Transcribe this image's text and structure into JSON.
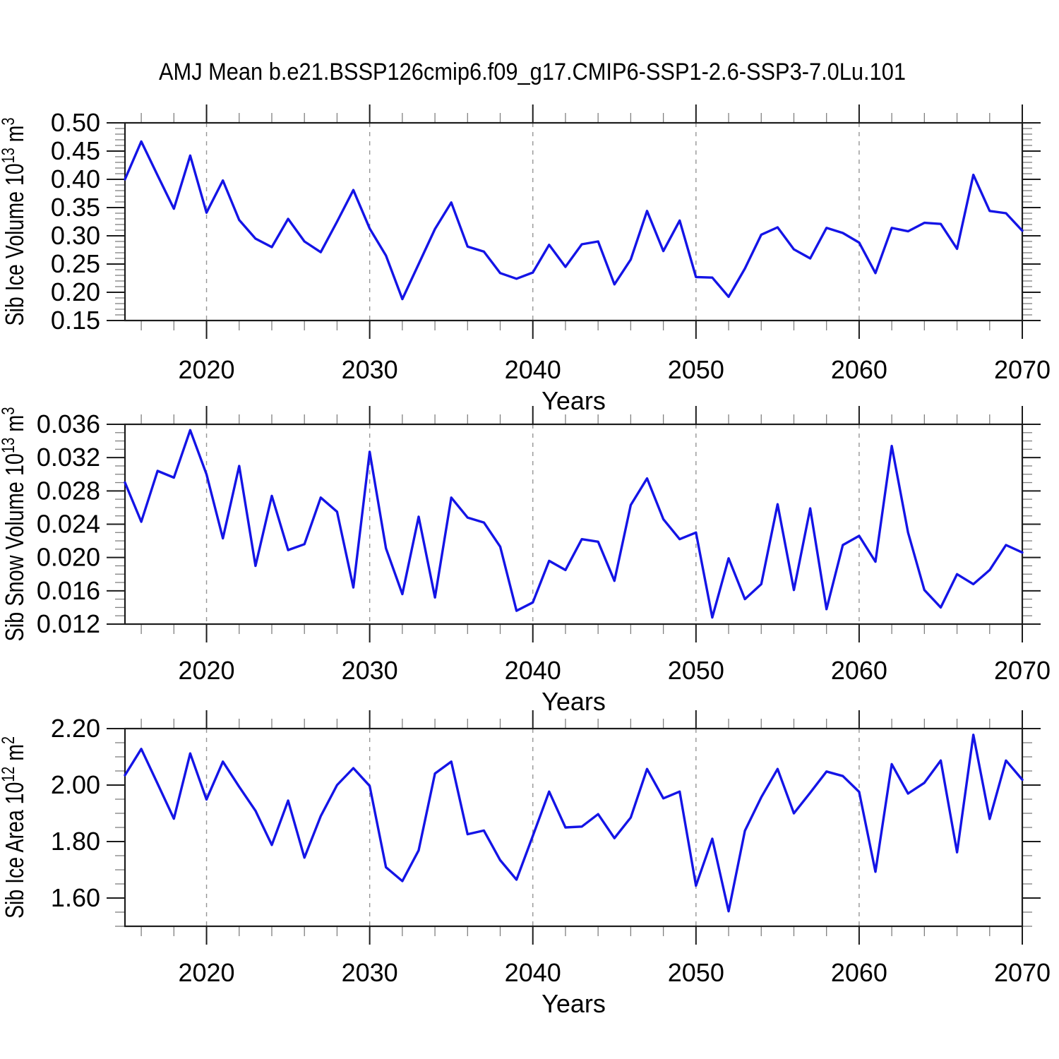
{
  "title": {
    "text": "AMJ Mean b.e21.BSSP126cmip6.f09_g17.CMIP6-SSP1-2.6-SSP3-7.0Lu.101"
  },
  "colors": {
    "line": "#1414e6",
    "axis": "#1c1c1c",
    "minor_tick": "#808080",
    "gridline": "#959595",
    "background": "#ffffff",
    "text": "#000000"
  },
  "x_axis": {
    "label": "Years",
    "range": [
      2015,
      2070
    ],
    "major_ticks": [
      2020,
      2030,
      2040,
      2050,
      2060,
      2070
    ],
    "tick_labels": [
      "2020",
      "2030",
      "2040",
      "2050",
      "2060",
      "2070"
    ],
    "minor_step_years": 2,
    "dashed_gridlines_at": [
      2020,
      2030,
      2040,
      2050,
      2060
    ]
  },
  "chart_data": [
    {
      "type": "line",
      "name": "sib-ice-volume",
      "ylabel": "Sib Ice Volume 10^13 m^3",
      "ylabel_parts": [
        {
          "t": "Sib Ice Volume 10"
        },
        {
          "t": "13",
          "sup": true
        },
        {
          "t": " m"
        },
        {
          "t": "3",
          "sup": true
        }
      ],
      "xlabel": "Years",
      "ylim": [
        0.15,
        0.5
      ],
      "y_major_step": 0.05,
      "y_minor_step": 0.01,
      "y_decimals": 2,
      "y_tick_labels": [
        "0.15",
        "0.20",
        "0.25",
        "0.30",
        "0.35",
        "0.40",
        "0.45",
        "0.50"
      ],
      "grid": "vertical-dashed-decades",
      "legend": "none",
      "x_start": 2015,
      "x_step": 1,
      "values": [
        0.4,
        0.467,
        0.407,
        0.348,
        0.442,
        0.341,
        0.398,
        0.328,
        0.295,
        0.28,
        0.33,
        0.29,
        0.271,
        0.325,
        0.381,
        0.313,
        0.265,
        0.188,
        0.25,
        0.312,
        0.359,
        0.281,
        0.272,
        0.234,
        0.224,
        0.235,
        0.284,
        0.245,
        0.285,
        0.29,
        0.214,
        0.258,
        0.344,
        0.273,
        0.327,
        0.227,
        0.226,
        0.192,
        0.242,
        0.302,
        0.315,
        0.276,
        0.26,
        0.314,
        0.305,
        0.288,
        0.234,
        0.314,
        0.308,
        0.323,
        0.321,
        0.277,
        0.408,
        0.344,
        0.34,
        0.309
      ]
    },
    {
      "type": "line",
      "name": "sib-snow-volume",
      "ylabel": "Sib Snow Volume 10^13 m^3",
      "ylabel_parts": [
        {
          "t": "Sib Snow Volume 10"
        },
        {
          "t": "13",
          "sup": true
        },
        {
          "t": " m"
        },
        {
          "t": "3",
          "sup": true
        }
      ],
      "xlabel": "Years",
      "ylim": [
        0.012,
        0.036
      ],
      "y_major_step": 0.004,
      "y_minor_step": 0.001,
      "y_decimals": 3,
      "y_tick_labels": [
        "0.012",
        "0.016",
        "0.020",
        "0.024",
        "0.028",
        "0.032",
        "0.036"
      ],
      "grid": "vertical-dashed-decades",
      "legend": "none",
      "x_start": 2015,
      "x_step": 1,
      "values": [
        0.029,
        0.0243,
        0.0304,
        0.0296,
        0.0353,
        0.03,
        0.0223,
        0.031,
        0.019,
        0.0274,
        0.0209,
        0.0216,
        0.0272,
        0.0255,
        0.0164,
        0.0327,
        0.0211,
        0.0156,
        0.0249,
        0.0152,
        0.0272,
        0.0248,
        0.0242,
        0.0213,
        0.0136,
        0.0146,
        0.0196,
        0.0185,
        0.0222,
        0.0219,
        0.0172,
        0.0263,
        0.0295,
        0.0246,
        0.0222,
        0.023,
        0.0128,
        0.0199,
        0.015,
        0.0168,
        0.0264,
        0.0161,
        0.0259,
        0.0138,
        0.0215,
        0.0226,
        0.0195,
        0.0334,
        0.023,
        0.0161,
        0.014,
        0.018,
        0.0168,
        0.0185,
        0.0215,
        0.0206
      ]
    },
    {
      "type": "line",
      "name": "sib-ice-area",
      "ylabel": "Sib Ice Area 10^12 m^2",
      "ylabel_parts": [
        {
          "t": "Sib Ice Area 10"
        },
        {
          "t": "12",
          "sup": true
        },
        {
          "t": " m"
        },
        {
          "t": "2",
          "sup": true
        }
      ],
      "xlabel": "Years",
      "ylim": [
        1.5,
        2.2
      ],
      "y_major_step": 0.2,
      "y_minor_step": 0.05,
      "y_decimals": 2,
      "y_tick_labels": [
        "1.60",
        "1.80",
        "2.00",
        "2.20"
      ],
      "grid": "vertical-dashed-decades",
      "legend": "none",
      "x_start": 2015,
      "x_step": 1,
      "values": [
        2.035,
        2.128,
        2.005,
        1.881,
        2.112,
        1.949,
        2.083,
        1.994,
        1.909,
        1.788,
        1.945,
        1.743,
        1.89,
        2.0,
        2.06,
        1.997,
        1.709,
        1.66,
        1.769,
        2.041,
        2.083,
        1.826,
        1.839,
        1.734,
        1.665,
        1.82,
        1.977,
        1.85,
        1.853,
        1.897,
        1.812,
        1.885,
        2.057,
        1.953,
        1.977,
        1.644,
        1.81,
        1.553,
        1.838,
        1.957,
        2.057,
        1.9,
        1.973,
        2.048,
        2.032,
        1.976,
        1.693,
        2.074,
        1.97,
        2.008,
        2.087,
        1.762,
        2.178,
        1.88,
        2.087,
        2.019
      ]
    }
  ]
}
